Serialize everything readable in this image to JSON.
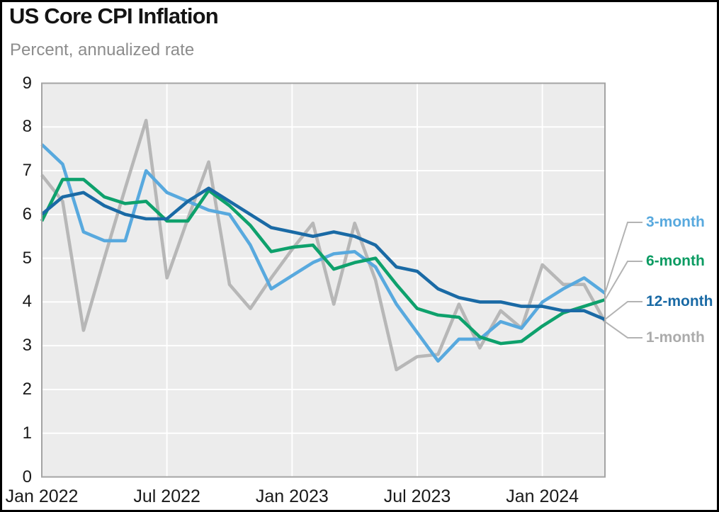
{
  "header": {
    "title": "US Core CPI Inflation",
    "subtitle": "Percent, annualized rate"
  },
  "chart_data": {
    "type": "line",
    "title": "US Core CPI Inflation",
    "subtitle": "Percent, annualized rate",
    "ylabel": "Percent, annualized rate",
    "ylim": [
      0,
      9
    ],
    "y_ticks": [
      0,
      1,
      2,
      3,
      4,
      5,
      6,
      7,
      8,
      9
    ],
    "x_tick_labels": [
      "Jan 2022",
      "Jul 2022",
      "Jan 2023",
      "Jul 2023",
      "Jan 2024"
    ],
    "x_tick_indices": [
      0,
      6,
      12,
      18,
      24
    ],
    "grid": true,
    "legend_position": "right-annotations",
    "months": [
      "Jan 2022",
      "Feb 2022",
      "Mar 2022",
      "Apr 2022",
      "May 2022",
      "Jun 2022",
      "Jul 2022",
      "Aug 2022",
      "Sep 2022",
      "Oct 2022",
      "Nov 2022",
      "Dec 2022",
      "Jan 2023",
      "Feb 2023",
      "Mar 2023",
      "Apr 2023",
      "May 2023",
      "Jun 2023",
      "Jul 2023",
      "Aug 2023",
      "Sep 2023",
      "Oct 2023",
      "Nov 2023",
      "Dec 2023",
      "Jan 2024",
      "Feb 2024",
      "Mar 2024",
      "Apr 2024"
    ],
    "series": [
      {
        "name": "1-month",
        "color": "#B7B7B7",
        "label_color": "#ABABAB",
        "values": [
          6.9,
          6.3,
          3.35,
          5.0,
          6.6,
          8.15,
          4.55,
          5.9,
          7.2,
          4.4,
          3.85,
          4.55,
          5.2,
          5.8,
          3.95,
          5.8,
          4.5,
          2.45,
          2.75,
          2.8,
          3.95,
          2.95,
          3.8,
          3.4,
          4.85,
          4.4,
          4.4,
          3.55
        ]
      },
      {
        "name": "3-month",
        "color": "#58A9DE",
        "label_color": "#58A9DE",
        "values": [
          7.6,
          7.15,
          5.6,
          5.4,
          5.4,
          7.0,
          6.5,
          6.3,
          6.1,
          6.0,
          5.3,
          4.3,
          4.6,
          4.9,
          5.1,
          5.15,
          4.8,
          3.95,
          3.3,
          2.65,
          3.15,
          3.15,
          3.55,
          3.4,
          4.0,
          4.3,
          4.55,
          4.2
        ]
      },
      {
        "name": "6-month",
        "color": "#0EA16C",
        "label_color": "#0B9B62",
        "values": [
          5.85,
          6.8,
          6.8,
          6.4,
          6.25,
          6.3,
          5.85,
          5.85,
          6.55,
          6.2,
          5.75,
          5.15,
          5.25,
          5.3,
          4.75,
          4.9,
          5.0,
          4.4,
          3.85,
          3.7,
          3.65,
          3.2,
          3.05,
          3.1,
          3.45,
          3.75,
          3.9,
          4.05
        ]
      },
      {
        "name": "12-month",
        "color": "#1A6AA5",
        "label_color": "#1A6AA5",
        "values": [
          6.0,
          6.4,
          6.5,
          6.2,
          6.0,
          5.9,
          5.9,
          6.3,
          6.6,
          6.3,
          6.0,
          5.7,
          5.6,
          5.5,
          5.6,
          5.5,
          5.3,
          4.8,
          4.7,
          4.3,
          4.1,
          4.0,
          4.0,
          3.9,
          3.9,
          3.8,
          3.8,
          3.6
        ]
      }
    ],
    "legend_order": [
      "3-month",
      "6-month",
      "12-month",
      "1-month"
    ]
  },
  "colors": {
    "plot_background": "#ECECEC",
    "gridline": "#FFFFFF",
    "plot_border": "#A4A4A4",
    "connector": "#B3B3B3",
    "axis_text": "#1A1A1A",
    "subtitle_text": "#8C8C8C",
    "frame_border": "#000000"
  }
}
